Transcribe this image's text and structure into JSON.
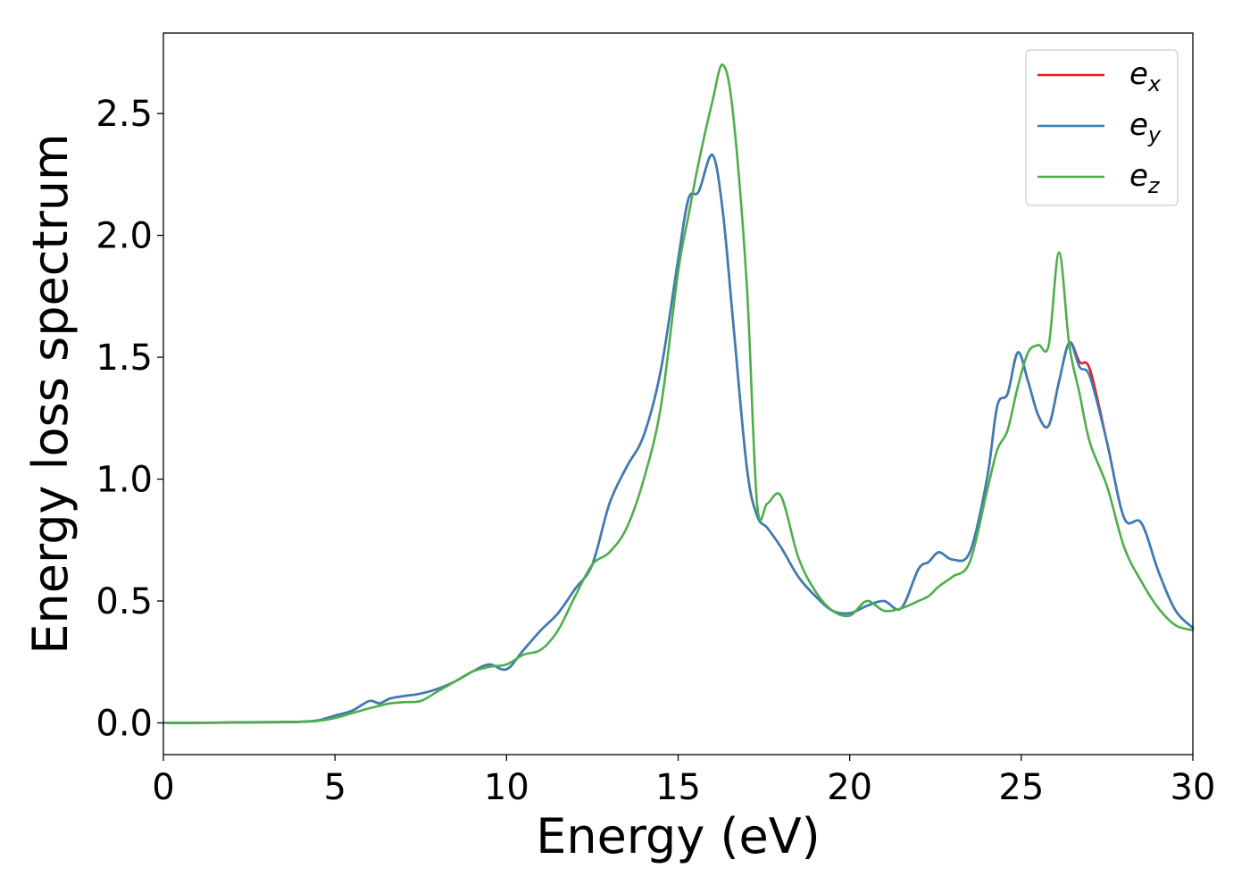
{
  "chart_data": {
    "type": "line",
    "title": "",
    "xlabel": "Energy (eV)",
    "ylabel": "Energy loss spectrum",
    "xlim": [
      0,
      30
    ],
    "ylim": [
      -0.13,
      2.83
    ],
    "xticks": [
      0,
      5,
      10,
      15,
      20,
      25,
      30
    ],
    "xtick_labels": [
      "0",
      "5",
      "10",
      "15",
      "20",
      "25",
      "30"
    ],
    "yticks": [
      0.0,
      0.5,
      1.0,
      1.5,
      2.0,
      2.5
    ],
    "ytick_labels": [
      "0.0",
      "0.5",
      "1.0",
      "1.5",
      "2.0",
      "2.5"
    ],
    "grid": false,
    "legend_position": "upper right",
    "x": [
      0,
      1,
      2,
      3,
      4,
      4.5,
      5,
      5.5,
      6,
      6.3,
      6.6,
      7,
      7.5,
      8,
      8.5,
      9,
      9.5,
      10,
      10.5,
      11,
      11.5,
      12,
      12.5,
      13,
      13.5,
      14,
      14.5,
      15,
      15.3,
      15.6,
      16,
      16.3,
      16.6,
      17,
      17.3,
      17.6,
      18,
      18.5,
      19,
      19.5,
      20,
      20.5,
      21,
      21.5,
      22,
      22.3,
      22.6,
      23,
      23.5,
      24,
      24.3,
      24.6,
      24.9,
      25.2,
      25.5,
      25.8,
      26.1,
      26.4,
      26.7,
      27,
      27.5,
      28,
      28.5,
      29,
      29.5,
      30
    ],
    "series": [
      {
        "name": "e",
        "subscript": "x",
        "color": "#e41a1c",
        "values": [
          0,
          0,
          0.002,
          0.003,
          0.005,
          0.01,
          0.03,
          0.05,
          0.09,
          0.08,
          0.1,
          0.11,
          0.12,
          0.14,
          0.17,
          0.21,
          0.24,
          0.22,
          0.3,
          0.38,
          0.45,
          0.55,
          0.65,
          0.9,
          1.05,
          1.18,
          1.45,
          1.9,
          2.15,
          2.18,
          2.33,
          2.1,
          1.65,
          1.05,
          0.85,
          0.8,
          0.72,
          0.6,
          0.52,
          0.46,
          0.45,
          0.48,
          0.5,
          0.47,
          0.63,
          0.66,
          0.7,
          0.67,
          0.7,
          1.0,
          1.3,
          1.35,
          1.52,
          1.4,
          1.26,
          1.22,
          1.4,
          1.56,
          1.48,
          1.45,
          1.15,
          0.84,
          0.82,
          0.62,
          0.46,
          0.39
        ]
      },
      {
        "name": "e",
        "subscript": "y",
        "color": "#377eb8",
        "values": [
          0,
          0,
          0.002,
          0.003,
          0.005,
          0.01,
          0.03,
          0.05,
          0.09,
          0.08,
          0.1,
          0.11,
          0.12,
          0.14,
          0.17,
          0.21,
          0.24,
          0.22,
          0.3,
          0.38,
          0.45,
          0.55,
          0.65,
          0.9,
          1.05,
          1.18,
          1.45,
          1.9,
          2.15,
          2.18,
          2.33,
          2.1,
          1.65,
          1.05,
          0.85,
          0.8,
          0.72,
          0.6,
          0.52,
          0.46,
          0.45,
          0.48,
          0.5,
          0.47,
          0.63,
          0.66,
          0.7,
          0.67,
          0.7,
          1.0,
          1.3,
          1.35,
          1.52,
          1.4,
          1.26,
          1.22,
          1.4,
          1.56,
          1.46,
          1.42,
          1.15,
          0.84,
          0.82,
          0.62,
          0.46,
          0.39
        ]
      },
      {
        "name": "e",
        "subscript": "z",
        "color": "#4daf4a",
        "values": [
          0,
          0,
          0.001,
          0.002,
          0.004,
          0.008,
          0.02,
          0.04,
          0.06,
          0.07,
          0.08,
          0.085,
          0.09,
          0.13,
          0.17,
          0.21,
          0.23,
          0.24,
          0.28,
          0.3,
          0.38,
          0.52,
          0.65,
          0.7,
          0.8,
          1.0,
          1.3,
          1.85,
          2.08,
          2.3,
          2.55,
          2.7,
          2.5,
          1.8,
          0.9,
          0.9,
          0.93,
          0.68,
          0.54,
          0.46,
          0.44,
          0.5,
          0.46,
          0.47,
          0.5,
          0.52,
          0.56,
          0.6,
          0.66,
          0.95,
          1.12,
          1.2,
          1.38,
          1.52,
          1.55,
          1.55,
          1.93,
          1.55,
          1.35,
          1.15,
          0.97,
          0.72,
          0.58,
          0.47,
          0.4,
          0.38
        ]
      }
    ]
  }
}
